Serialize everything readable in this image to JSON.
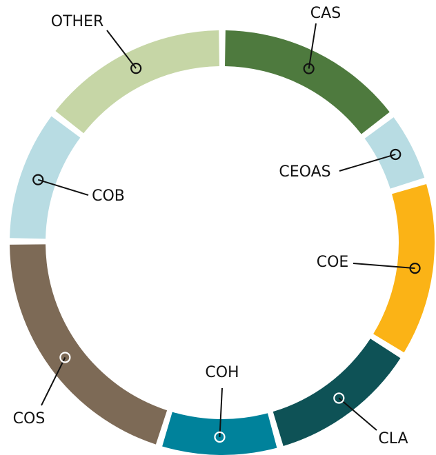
{
  "chart_data": {
    "type": "donut",
    "categories": [
      "CAS",
      "CEOAS",
      "COE",
      "CLA",
      "COH",
      "COS",
      "COB",
      "OTHER"
    ],
    "values": [
      14.7,
      5.6,
      13.6,
      11.7,
      9.2,
      20.3,
      10.3,
      14.6
    ],
    "colors": [
      "#4e7a3e",
      "#b8dce3",
      "#fbb316",
      "#0e5256",
      "#00829b",
      "#7d6a56",
      "#b8dce3",
      "#c6d6a6"
    ]
  }
}
